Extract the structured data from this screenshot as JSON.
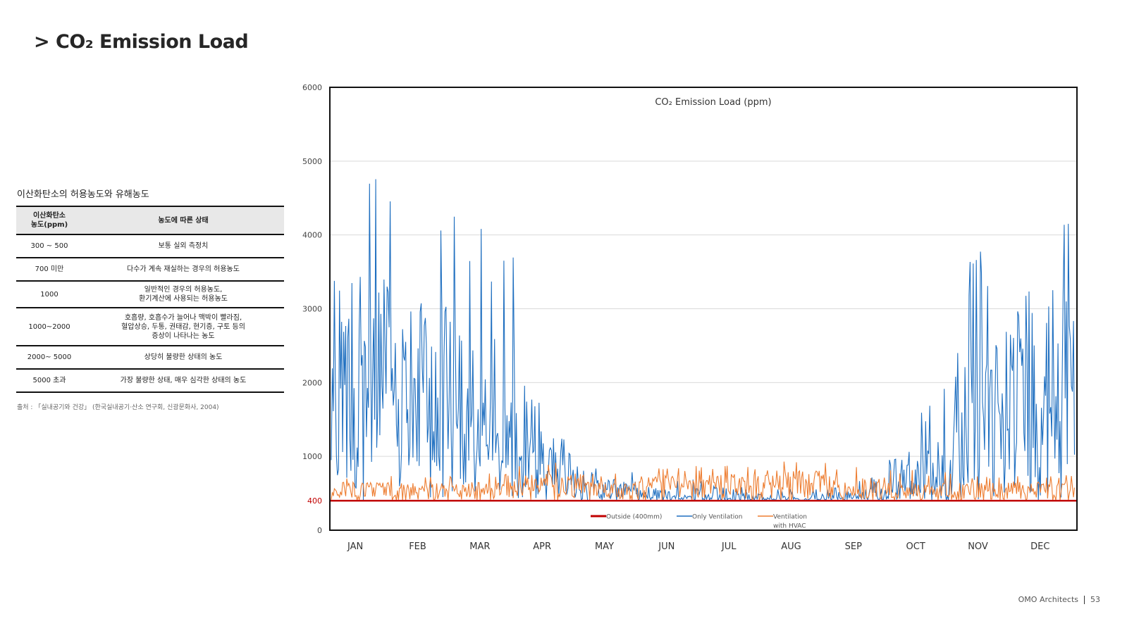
{
  "page": {
    "title": "> CO₂ Emission Load",
    "footer_company": "OMO Architects",
    "footer_page": "53"
  },
  "table": {
    "caption": "이산화탄소의 허용농도와 유해농도",
    "headers": [
      "이산화탄소\n농도(ppm)",
      "농도에 따른 상태"
    ],
    "rows": [
      [
        "300 ~ 500",
        "보통 실외 측정치"
      ],
      [
        "700 미만",
        "다수가 계속 재실하는 경우의 허용농도"
      ],
      [
        "1000",
        "일반적인 경우의 허용농도,\n환기계산에 사용되는 허용농도"
      ],
      [
        "1000~2000",
        "호흡량, 호흡수가 늘어나 맥박이 빨라짐,\n혈압상승, 두통, 권태감, 현기증, 구토 등의\n증상이 나타나는 농도"
      ],
      [
        "2000~ 5000",
        "상당히 불량한 상태의 농도"
      ],
      [
        "5000 초과",
        "가장 불량한 상태, 매우 심각한 상태의 농도"
      ]
    ],
    "source": "출처 : 「실내공기와 건강」 (한국실내공기·산소 연구회, 신광문화사, 2004)"
  },
  "chart_data": {
    "type": "line",
    "title": "CO₂ Emission Load (ppm)",
    "xlabel": "",
    "ylabel": "",
    "ylim": [
      0,
      6000
    ],
    "yticks": [
      0,
      1000,
      2000,
      3000,
      4000,
      5000,
      6000
    ],
    "highlight_tick": {
      "value": 400,
      "label": "400",
      "color": "#c00000"
    },
    "categories": [
      "JAN",
      "FEB",
      "MAR",
      "APR",
      "MAY",
      "JUN",
      "JUL",
      "AUG",
      "SEP",
      "OCT",
      "NOV",
      "DEC"
    ],
    "grid": true,
    "legend_position": "bottom-center",
    "series": [
      {
        "name": "Outside (400mm)",
        "color": "#c00000",
        "constant": 400
      },
      {
        "name": "Only Ventilation",
        "color": "#1f6fc0",
        "monthly_peak": [
          5170,
          4580,
          4320,
          2100,
          860,
          760,
          600,
          560,
          560,
          1450,
          3700,
          4630
        ],
        "monthly_typical": [
          2200,
          1900,
          1500,
          850,
          580,
          470,
          440,
          430,
          460,
          700,
          1700,
          2300
        ]
      },
      {
        "name": "Ventilation\nwith HVAC",
        "color": "#ed7d31",
        "monthly_peak": [
          750,
          730,
          740,
          950,
          780,
          870,
          880,
          950,
          870,
          830,
          740,
          760
        ],
        "monthly_typical": [
          580,
          560,
          570,
          650,
          560,
          640,
          660,
          700,
          620,
          520,
          560,
          580
        ]
      }
    ]
  }
}
